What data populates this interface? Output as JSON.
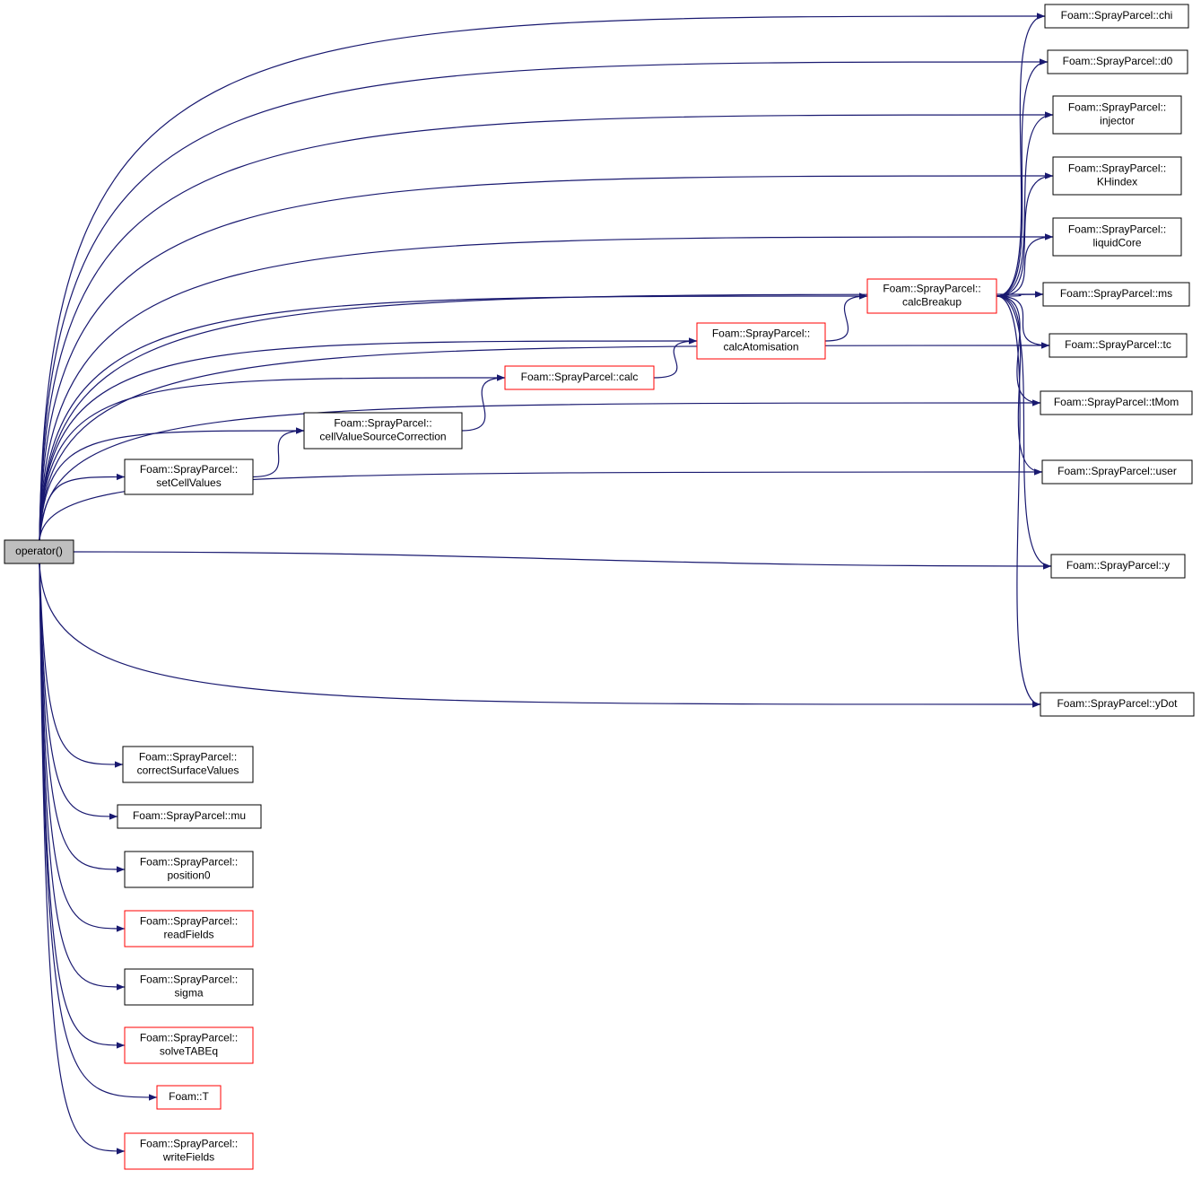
{
  "nodes": [
    {
      "lines": [
        "operator()"
      ]
    },
    {
      "lines": [
        "Foam::SprayParcel::chi"
      ]
    },
    {
      "lines": [
        "Foam::SprayParcel::d0"
      ]
    },
    {
      "lines": [
        "Foam::SprayParcel::",
        "injector"
      ]
    },
    {
      "lines": [
        "Foam::SprayParcel::",
        "KHindex"
      ]
    },
    {
      "lines": [
        "Foam::SprayParcel::",
        "liquidCore"
      ]
    },
    {
      "lines": [
        "Foam::SprayParcel::ms"
      ]
    },
    {
      "lines": [
        "Foam::SprayParcel::",
        "calcBreakup"
      ]
    },
    {
      "lines": [
        "Foam::SprayParcel::",
        "calcAtomisation"
      ]
    },
    {
      "lines": [
        "Foam::SprayParcel::calc"
      ]
    },
    {
      "lines": [
        "Foam::SprayParcel::",
        "cellValueSourceCorrection"
      ]
    },
    {
      "lines": [
        "Foam::SprayParcel::",
        "setCellValues"
      ]
    },
    {
      "lines": [
        "Foam::SprayParcel::tc"
      ]
    },
    {
      "lines": [
        "Foam::SprayParcel::tMom"
      ]
    },
    {
      "lines": [
        "Foam::SprayParcel::user"
      ]
    },
    {
      "lines": [
        "Foam::SprayParcel::y"
      ]
    },
    {
      "lines": [
        "Foam::SprayParcel::yDot"
      ]
    },
    {
      "lines": [
        "Foam::SprayParcel::",
        "correctSurfaceValues"
      ]
    },
    {
      "lines": [
        "Foam::SprayParcel::mu"
      ]
    },
    {
      "lines": [
        "Foam::SprayParcel::",
        "position0"
      ]
    },
    {
      "lines": [
        "Foam::SprayParcel::",
        "readFields"
      ]
    },
    {
      "lines": [
        "Foam::SprayParcel::",
        "sigma"
      ]
    },
    {
      "lines": [
        "Foam::SprayParcel::",
        "solveTABEq"
      ]
    },
    {
      "lines": [
        "Foam::T"
      ]
    },
    {
      "lines": [
        "Foam::SprayParcel::",
        "writeFields"
      ]
    }
  ]
}
